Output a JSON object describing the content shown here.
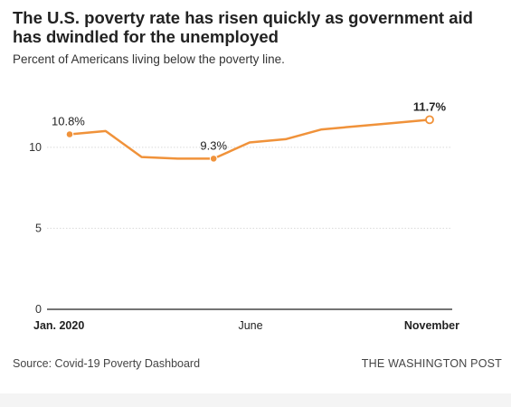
{
  "header": {
    "title": "The U.S. poverty rate has risen quickly as government aid has dwindled for the unemployed",
    "subtitle": "Percent of Americans living below the poverty line."
  },
  "footer": {
    "source": "Source: Covid-19 Poverty Dashboard",
    "publisher": "THE WASHINGTON POST"
  },
  "colors": {
    "line": "#f0923a",
    "grid": "#d9d9d9",
    "axis": "#222222",
    "text": "#222222"
  },
  "chart_data": {
    "type": "line",
    "x": [
      0,
      1,
      2,
      3,
      4,
      5,
      6,
      7,
      8,
      9,
      10
    ],
    "values": [
      10.8,
      11.0,
      9.4,
      9.3,
      9.3,
      10.3,
      10.5,
      11.1,
      11.3,
      11.5,
      11.7
    ],
    "ylim": [
      0,
      12
    ],
    "yticks": [
      0,
      5,
      10
    ],
    "xticks": [
      {
        "x": 0,
        "label": "Jan. 2020",
        "bold": true
      },
      {
        "x": 5,
        "label": "June",
        "bold": false
      },
      {
        "x": 10,
        "label": "November",
        "bold": true
      }
    ],
    "annotations": [
      {
        "index": 0,
        "label": "10.8%",
        "marker": "filled",
        "bold": false
      },
      {
        "index": 4,
        "label": "9.3%",
        "marker": "filled",
        "bold": false
      },
      {
        "index": 10,
        "label": "11.7%",
        "marker": "open",
        "bold": true
      }
    ],
    "grid": true
  }
}
